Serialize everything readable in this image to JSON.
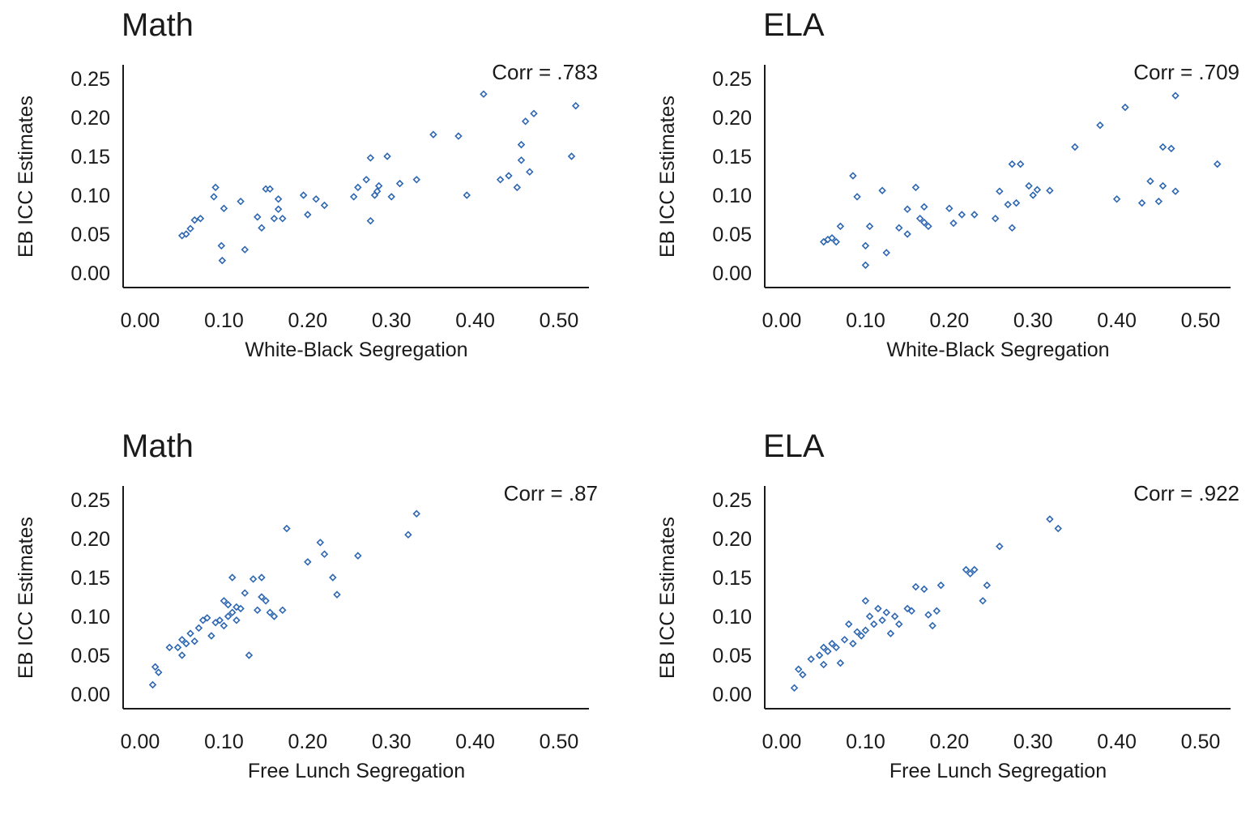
{
  "chart_data": [
    {
      "type": "scatter",
      "title": "Math",
      "annotation": "Corr = .783",
      "xlabel": "White-Black Segregation",
      "ylabel": "EB ICC Estimates",
      "xlim": [
        0,
        0.5
      ],
      "ylim": [
        0,
        0.25
      ],
      "xticks": [
        "0.00",
        "0.10",
        "0.20",
        "0.30",
        "0.40",
        "0.50"
      ],
      "yticks": [
        "0.00",
        "0.05",
        "0.10",
        "0.15",
        "0.20",
        "0.25"
      ],
      "marker_color": "#2e67b1",
      "points": [
        [
          0.05,
          0.048
        ],
        [
          0.055,
          0.05
        ],
        [
          0.06,
          0.057
        ],
        [
          0.065,
          0.068
        ],
        [
          0.072,
          0.07
        ],
        [
          0.09,
          0.11
        ],
        [
          0.088,
          0.098
        ],
        [
          0.1,
          0.083
        ],
        [
          0.097,
          0.035
        ],
        [
          0.098,
          0.016
        ],
        [
          0.12,
          0.092
        ],
        [
          0.125,
          0.03
        ],
        [
          0.14,
          0.072
        ],
        [
          0.145,
          0.058
        ],
        [
          0.15,
          0.108
        ],
        [
          0.155,
          0.108
        ],
        [
          0.16,
          0.07
        ],
        [
          0.165,
          0.095
        ],
        [
          0.165,
          0.082
        ],
        [
          0.17,
          0.07
        ],
        [
          0.195,
          0.1
        ],
        [
          0.2,
          0.075
        ],
        [
          0.21,
          0.095
        ],
        [
          0.22,
          0.087
        ],
        [
          0.255,
          0.098
        ],
        [
          0.26,
          0.11
        ],
        [
          0.27,
          0.12
        ],
        [
          0.275,
          0.148
        ],
        [
          0.275,
          0.067
        ],
        [
          0.28,
          0.1
        ],
        [
          0.283,
          0.105
        ],
        [
          0.285,
          0.112
        ],
        [
          0.295,
          0.15
        ],
        [
          0.3,
          0.098
        ],
        [
          0.31,
          0.115
        ],
        [
          0.33,
          0.12
        ],
        [
          0.35,
          0.178
        ],
        [
          0.38,
          0.176
        ],
        [
          0.39,
          0.1
        ],
        [
          0.41,
          0.23
        ],
        [
          0.43,
          0.12
        ],
        [
          0.44,
          0.125
        ],
        [
          0.45,
          0.11
        ],
        [
          0.455,
          0.145
        ],
        [
          0.455,
          0.165
        ],
        [
          0.46,
          0.195
        ],
        [
          0.465,
          0.13
        ],
        [
          0.47,
          0.205
        ],
        [
          0.515,
          0.15
        ],
        [
          0.52,
          0.215
        ]
      ]
    },
    {
      "type": "scatter",
      "title": "ELA",
      "annotation": "Corr = .709",
      "xlabel": "White-Black Segregation",
      "ylabel": "EB ICC Estimates",
      "xlim": [
        0,
        0.5
      ],
      "ylim": [
        0,
        0.25
      ],
      "xticks": [
        "0.00",
        "0.10",
        "0.20",
        "0.30",
        "0.40",
        "0.50"
      ],
      "yticks": [
        "0.00",
        "0.05",
        "0.10",
        "0.15",
        "0.20",
        "0.25"
      ],
      "marker_color": "#2e67b1",
      "points": [
        [
          0.05,
          0.04
        ],
        [
          0.055,
          0.043
        ],
        [
          0.06,
          0.045
        ],
        [
          0.065,
          0.04
        ],
        [
          0.07,
          0.06
        ],
        [
          0.085,
          0.125
        ],
        [
          0.09,
          0.098
        ],
        [
          0.1,
          0.035
        ],
        [
          0.1,
          0.01
        ],
        [
          0.105,
          0.06
        ],
        [
          0.12,
          0.106
        ],
        [
          0.125,
          0.026
        ],
        [
          0.14,
          0.058
        ],
        [
          0.15,
          0.05
        ],
        [
          0.15,
          0.082
        ],
        [
          0.16,
          0.11
        ],
        [
          0.165,
          0.07
        ],
        [
          0.17,
          0.085
        ],
        [
          0.17,
          0.065
        ],
        [
          0.175,
          0.06
        ],
        [
          0.2,
          0.083
        ],
        [
          0.205,
          0.064
        ],
        [
          0.215,
          0.075
        ],
        [
          0.23,
          0.075
        ],
        [
          0.255,
          0.07
        ],
        [
          0.26,
          0.105
        ],
        [
          0.27,
          0.088
        ],
        [
          0.275,
          0.14
        ],
        [
          0.275,
          0.058
        ],
        [
          0.28,
          0.09
        ],
        [
          0.285,
          0.14
        ],
        [
          0.295,
          0.112
        ],
        [
          0.3,
          0.1
        ],
        [
          0.305,
          0.107
        ],
        [
          0.32,
          0.106
        ],
        [
          0.35,
          0.162
        ],
        [
          0.38,
          0.19
        ],
        [
          0.4,
          0.095
        ],
        [
          0.41,
          0.213
        ],
        [
          0.43,
          0.09
        ],
        [
          0.44,
          0.118
        ],
        [
          0.45,
          0.092
        ],
        [
          0.455,
          0.162
        ],
        [
          0.455,
          0.112
        ],
        [
          0.465,
          0.16
        ],
        [
          0.47,
          0.105
        ],
        [
          0.47,
          0.228
        ],
        [
          0.52,
          0.14
        ]
      ]
    },
    {
      "type": "scatter",
      "title": "Math",
      "annotation": "Corr = .87",
      "xlabel": "Free Lunch Segregation",
      "ylabel": "EB ICC Estimates",
      "xlim": [
        0,
        0.5
      ],
      "ylim": [
        0,
        0.25
      ],
      "xticks": [
        "0.00",
        "0.10",
        "0.20",
        "0.30",
        "0.40",
        "0.50"
      ],
      "yticks": [
        "0.00",
        "0.05",
        "0.10",
        "0.15",
        "0.20",
        "0.25"
      ],
      "marker_color": "#2e67b1",
      "points": [
        [
          0.015,
          0.012
        ],
        [
          0.018,
          0.035
        ],
        [
          0.022,
          0.028
        ],
        [
          0.035,
          0.06
        ],
        [
          0.045,
          0.06
        ],
        [
          0.05,
          0.05
        ],
        [
          0.05,
          0.07
        ],
        [
          0.055,
          0.065
        ],
        [
          0.06,
          0.078
        ],
        [
          0.065,
          0.068
        ],
        [
          0.07,
          0.085
        ],
        [
          0.075,
          0.095
        ],
        [
          0.08,
          0.098
        ],
        [
          0.085,
          0.075
        ],
        [
          0.09,
          0.092
        ],
        [
          0.095,
          0.095
        ],
        [
          0.1,
          0.088
        ],
        [
          0.1,
          0.12
        ],
        [
          0.105,
          0.115
        ],
        [
          0.105,
          0.1
        ],
        [
          0.11,
          0.15
        ],
        [
          0.11,
          0.105
        ],
        [
          0.115,
          0.112
        ],
        [
          0.115,
          0.095
        ],
        [
          0.12,
          0.11
        ],
        [
          0.125,
          0.13
        ],
        [
          0.13,
          0.05
        ],
        [
          0.135,
          0.148
        ],
        [
          0.14,
          0.108
        ],
        [
          0.145,
          0.15
        ],
        [
          0.145,
          0.125
        ],
        [
          0.15,
          0.12
        ],
        [
          0.155,
          0.105
        ],
        [
          0.16,
          0.1
        ],
        [
          0.17,
          0.108
        ],
        [
          0.175,
          0.213
        ],
        [
          0.2,
          0.17
        ],
        [
          0.215,
          0.195
        ],
        [
          0.22,
          0.18
        ],
        [
          0.23,
          0.15
        ],
        [
          0.235,
          0.128
        ],
        [
          0.26,
          0.178
        ],
        [
          0.32,
          0.205
        ],
        [
          0.33,
          0.232
        ]
      ]
    },
    {
      "type": "scatter",
      "title": "ELA",
      "annotation": "Corr = .922",
      "xlabel": "Free Lunch Segregation",
      "ylabel": "EB ICC Estimates",
      "xlim": [
        0,
        0.5
      ],
      "ylim": [
        0,
        0.25
      ],
      "xticks": [
        "0.00",
        "0.10",
        "0.20",
        "0.30",
        "0.40",
        "0.50"
      ],
      "yticks": [
        "0.00",
        "0.05",
        "0.10",
        "0.15",
        "0.20",
        "0.25"
      ],
      "marker_color": "#2e67b1",
      "points": [
        [
          0.015,
          0.008
        ],
        [
          0.02,
          0.032
        ],
        [
          0.025,
          0.025
        ],
        [
          0.035,
          0.045
        ],
        [
          0.045,
          0.05
        ],
        [
          0.05,
          0.038
        ],
        [
          0.05,
          0.06
        ],
        [
          0.055,
          0.055
        ],
        [
          0.06,
          0.065
        ],
        [
          0.065,
          0.06
        ],
        [
          0.07,
          0.04
        ],
        [
          0.075,
          0.07
        ],
        [
          0.08,
          0.09
        ],
        [
          0.085,
          0.065
        ],
        [
          0.09,
          0.08
        ],
        [
          0.095,
          0.075
        ],
        [
          0.1,
          0.082
        ],
        [
          0.1,
          0.12
        ],
        [
          0.105,
          0.1
        ],
        [
          0.11,
          0.09
        ],
        [
          0.115,
          0.11
        ],
        [
          0.12,
          0.095
        ],
        [
          0.125,
          0.105
        ],
        [
          0.13,
          0.078
        ],
        [
          0.135,
          0.1
        ],
        [
          0.14,
          0.09
        ],
        [
          0.15,
          0.11
        ],
        [
          0.155,
          0.107
        ],
        [
          0.16,
          0.138
        ],
        [
          0.17,
          0.135
        ],
        [
          0.175,
          0.102
        ],
        [
          0.18,
          0.088
        ],
        [
          0.185,
          0.107
        ],
        [
          0.19,
          0.14
        ],
        [
          0.22,
          0.16
        ],
        [
          0.225,
          0.155
        ],
        [
          0.23,
          0.16
        ],
        [
          0.24,
          0.12
        ],
        [
          0.245,
          0.14
        ],
        [
          0.26,
          0.19
        ],
        [
          0.32,
          0.225
        ],
        [
          0.33,
          0.213
        ]
      ]
    }
  ]
}
